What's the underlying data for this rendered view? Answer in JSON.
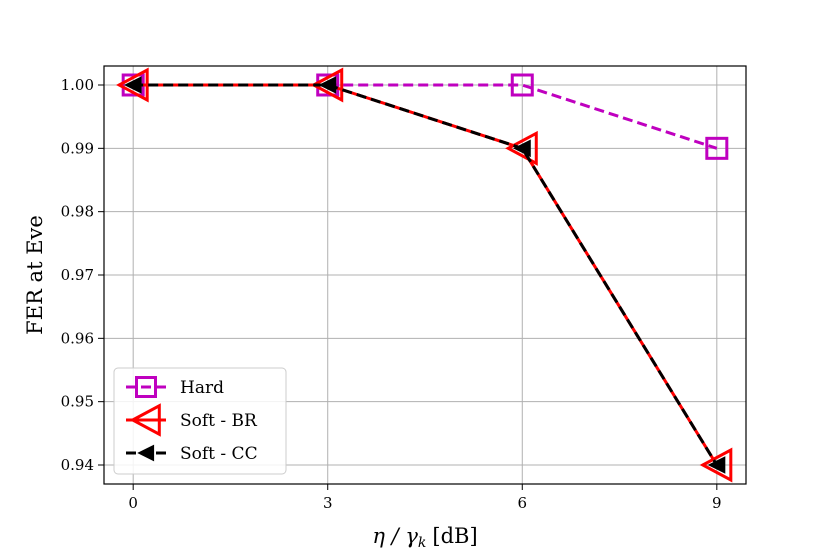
{
  "chart_data": {
    "type": "line",
    "xlabel": "η / γ",
    "xlabel_sub": "k",
    "xlabel_unit": "[dB]",
    "ylabel": "FER at Eve",
    "x": [
      0,
      3,
      6,
      9
    ],
    "x_tick_labels": [
      "0",
      "3",
      "6",
      "9"
    ],
    "xlim": [
      -0.45,
      9.45
    ],
    "ylim": [
      0.937,
      1.003
    ],
    "y_ticks": [
      0.94,
      0.95,
      0.96,
      0.97,
      0.98,
      0.99,
      1.0
    ],
    "y_tick_labels": [
      "0.94",
      "0.95",
      "0.96",
      "0.97",
      "0.98",
      "0.99",
      "1.00"
    ],
    "grid": true,
    "legend_position": "lower-left",
    "series": [
      {
        "name": "Hard",
        "values": [
          1.0,
          1.0,
          1.0,
          0.99
        ],
        "color": "#bf00bf",
        "line_style": "dashed",
        "marker": "square-open"
      },
      {
        "name": "Soft - BR",
        "values": [
          1.0,
          1.0,
          0.99,
          0.94
        ],
        "color": "#ff0000",
        "line_style": "solid",
        "marker": "triangle-left-open"
      },
      {
        "name": "Soft - CC",
        "values": [
          1.0,
          1.0,
          0.99,
          0.94
        ],
        "color": "#000000",
        "line_style": "dashed",
        "marker": "triangle-left-filled"
      }
    ]
  }
}
